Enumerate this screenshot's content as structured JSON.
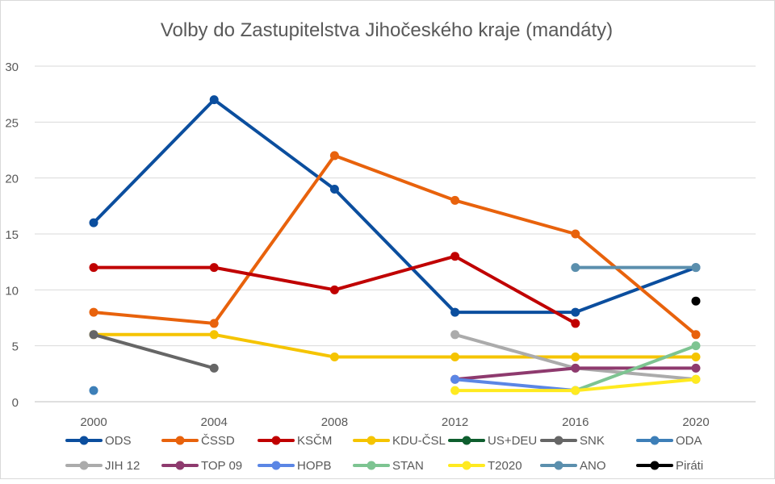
{
  "chart_data": {
    "type": "line",
    "title": "Volby do Zastupitelstva Jihočeského kraje (mandáty)",
    "xlabel": "",
    "ylabel": "",
    "categories": [
      "2000",
      "2004",
      "2008",
      "2012",
      "2016",
      "2020"
    ],
    "ylim": [
      0,
      30
    ],
    "yticks": [
      0,
      5,
      10,
      15,
      20,
      25,
      30
    ],
    "grid": true,
    "legend_position": "bottom",
    "series": [
      {
        "name": "ODS",
        "color": "#0B4E9E",
        "values": [
          16,
          27,
          19,
          8,
          8,
          12
        ]
      },
      {
        "name": "ČSSD",
        "color": "#E8620C",
        "values": [
          8,
          7,
          22,
          18,
          15,
          6
        ]
      },
      {
        "name": "KSČM",
        "color": "#C00000",
        "values": [
          12,
          12,
          10,
          13,
          7,
          null
        ]
      },
      {
        "name": "KDU-ČSL",
        "color": "#F5C400",
        "values": [
          6,
          6,
          4,
          4,
          4,
          4
        ]
      },
      {
        "name": "US+DEU",
        "color": "#0E5E2E",
        "values": [
          null,
          null,
          null,
          null,
          null,
          null
        ]
      },
      {
        "name": "SNK",
        "color": "#666666",
        "values": [
          6,
          3,
          null,
          null,
          null,
          null
        ]
      },
      {
        "name": "ODA",
        "color": "#3D7FB8",
        "values": [
          1,
          null,
          null,
          null,
          null,
          null
        ]
      },
      {
        "name": "JIH 12",
        "color": "#ABABAB",
        "values": [
          null,
          null,
          null,
          6,
          3,
          2
        ]
      },
      {
        "name": "TOP 09",
        "color": "#8E3A6E",
        "values": [
          null,
          null,
          null,
          2,
          3,
          3
        ]
      },
      {
        "name": "HOPB",
        "color": "#5B86E5",
        "values": [
          null,
          null,
          null,
          2,
          1,
          null
        ]
      },
      {
        "name": "STAN",
        "color": "#7DC491",
        "values": [
          null,
          null,
          null,
          null,
          1,
          5
        ]
      },
      {
        "name": "T2020",
        "color": "#FFEA20",
        "values": [
          null,
          null,
          null,
          1,
          1,
          2
        ]
      },
      {
        "name": "ANO",
        "color": "#5B8FAD",
        "values": [
          null,
          null,
          null,
          null,
          12,
          12
        ]
      },
      {
        "name": "Piráti",
        "color": "#000000",
        "values": [
          null,
          null,
          null,
          null,
          null,
          9
        ]
      }
    ]
  }
}
